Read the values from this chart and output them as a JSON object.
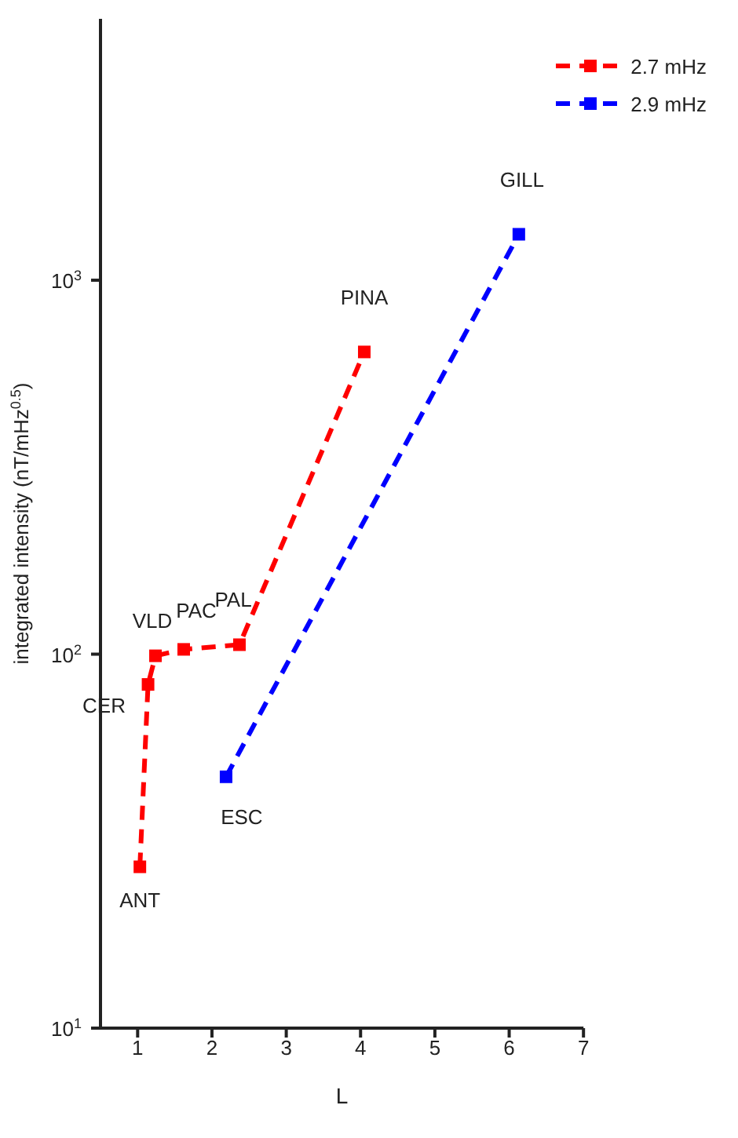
{
  "chart_data": {
    "type": "line",
    "xlabel": "L",
    "ylabel": "integrated intensity (nT/mHz$^{0.5}$)",
    "xlim": [
      0.5,
      7
    ],
    "xticks": [
      1,
      2,
      3,
      4,
      5,
      6,
      7
    ],
    "ylim": [
      10,
      5000
    ],
    "log": "y",
    "yticks": [
      {
        "value": 10,
        "label": "10$^{1}$"
      },
      {
        "value": 100,
        "label": "10$^{2}$"
      },
      {
        "value": 1000,
        "label": "10$^{3}$"
      }
    ],
    "marker": "square",
    "line_style": "dashed",
    "legend": "top right",
    "grid": false,
    "series": [
      {
        "name": "2.7 mHz",
        "color": "#ff0000",
        "x": [
          1.03,
          1.14,
          1.24,
          1.62,
          2.37,
          4.05
        ],
        "values": [
          27,
          83,
          99,
          103,
          106,
          643
        ]
      },
      {
        "name": "2.9 mHz",
        "color": "#0000ff",
        "x": [
          2.19,
          6.13
        ],
        "values": [
          47,
          1327
        ]
      }
    ],
    "annotations": [
      {
        "text": "ANT",
        "x": 1.03,
        "y": 27
      },
      {
        "text": "CER",
        "x": 1.14,
        "y": 83
      },
      {
        "text": "VLD",
        "x": 1.24,
        "y": 99
      },
      {
        "text": "PAC",
        "x": 1.62,
        "y": 103
      },
      {
        "text": "PAL",
        "x": 2.37,
        "y": 106
      },
      {
        "text": "PINA",
        "x": 4.05,
        "y": 643
      },
      {
        "text": "ESC",
        "x": 2.19,
        "y": 47
      },
      {
        "text": "GILL",
        "x": 6.13,
        "y": 1327
      }
    ]
  }
}
